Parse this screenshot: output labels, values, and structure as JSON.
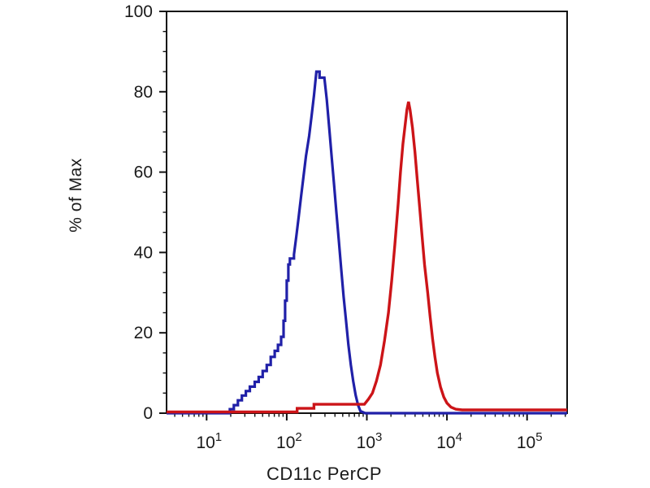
{
  "figure": {
    "background_color": "#ffffff",
    "axis_color": "#111111",
    "text_color": "#1a1a1a"
  },
  "chart_data": {
    "type": "line",
    "subtype": "flow-cytometry-histogram-overlay",
    "title": "",
    "xlabel": "CD11c PerCP",
    "ylabel": "% of Max",
    "x_scale": "log10",
    "grid": "off",
    "legend": "none",
    "x_axis": {
      "lim_log10": [
        0.5,
        5.5
      ],
      "major_ticks": [
        10,
        100,
        1000,
        10000,
        100000
      ],
      "major_tick_labels": [
        {
          "base": "10",
          "exp": "1"
        },
        {
          "base": "10",
          "exp": "2"
        },
        {
          "base": "10",
          "exp": "3"
        },
        {
          "base": "10",
          "exp": "4"
        },
        {
          "base": "10",
          "exp": "5"
        }
      ],
      "minor_tick_mantissas": [
        2,
        3,
        4,
        5,
        6,
        7,
        8,
        9
      ]
    },
    "y_axis": {
      "lim": [
        0,
        100
      ],
      "major_ticks": [
        0,
        20,
        40,
        60,
        80,
        100
      ],
      "minor_tick_step": 5
    },
    "series": [
      {
        "name": "blue-histogram",
        "color": "#2020a8",
        "stroke_width": 3.2,
        "peak": {
          "x_log10": 2.39,
          "pct": 85
        },
        "points_log10x_pct": [
          [
            0.5,
            0
          ],
          [
            1.29,
            0
          ],
          [
            1.29,
            1
          ],
          [
            1.34,
            1
          ],
          [
            1.34,
            2
          ],
          [
            1.39,
            2
          ],
          [
            1.39,
            3.2
          ],
          [
            1.44,
            3.2
          ],
          [
            1.44,
            4.4
          ],
          [
            1.49,
            4.4
          ],
          [
            1.49,
            5.5
          ],
          [
            1.54,
            5.5
          ],
          [
            1.54,
            6.6
          ],
          [
            1.6,
            6.6
          ],
          [
            1.6,
            7.8
          ],
          [
            1.65,
            7.8
          ],
          [
            1.65,
            9
          ],
          [
            1.7,
            9
          ],
          [
            1.7,
            10.5
          ],
          [
            1.75,
            10.5
          ],
          [
            1.75,
            12
          ],
          [
            1.8,
            12
          ],
          [
            1.8,
            14
          ],
          [
            1.85,
            14
          ],
          [
            1.85,
            15.5
          ],
          [
            1.89,
            15.5
          ],
          [
            1.89,
            17
          ],
          [
            1.93,
            17
          ],
          [
            1.93,
            19
          ],
          [
            1.96,
            19
          ],
          [
            1.96,
            23
          ],
          [
            1.98,
            23
          ],
          [
            1.98,
            28
          ],
          [
            2.0,
            28
          ],
          [
            2.0,
            33
          ],
          [
            2.02,
            33
          ],
          [
            2.02,
            37
          ],
          [
            2.04,
            37
          ],
          [
            2.04,
            38.5
          ],
          [
            2.09,
            38.5
          ],
          [
            2.09,
            39.5
          ],
          [
            2.12,
            44
          ],
          [
            2.15,
            49
          ],
          [
            2.18,
            54
          ],
          [
            2.21,
            59
          ],
          [
            2.24,
            64
          ],
          [
            2.28,
            69
          ],
          [
            2.31,
            74
          ],
          [
            2.34,
            79
          ],
          [
            2.36,
            83
          ],
          [
            2.37,
            85
          ],
          [
            2.41,
            85
          ],
          [
            2.41,
            83.5
          ],
          [
            2.47,
            83.5
          ],
          [
            2.5,
            78
          ],
          [
            2.53,
            71
          ],
          [
            2.56,
            64
          ],
          [
            2.59,
            57
          ],
          [
            2.62,
            50
          ],
          [
            2.65,
            43
          ],
          [
            2.68,
            36
          ],
          [
            2.71,
            29
          ],
          [
            2.74,
            23
          ],
          [
            2.77,
            17
          ],
          [
            2.8,
            12
          ],
          [
            2.83,
            8
          ],
          [
            2.86,
            4.5
          ],
          [
            2.89,
            2
          ],
          [
            2.92,
            0.5
          ],
          [
            2.98,
            0
          ],
          [
            5.5,
            0
          ]
        ]
      },
      {
        "name": "red-histogram",
        "color": "#cc1418",
        "stroke_width": 3.4,
        "peak": {
          "x_log10": 3.52,
          "pct": 77.5
        },
        "points_log10x_pct": [
          [
            0.5,
            0.3
          ],
          [
            2.13,
            0.3
          ],
          [
            2.13,
            1.2
          ],
          [
            2.34,
            1.2
          ],
          [
            2.34,
            2.2
          ],
          [
            2.97,
            2.2
          ],
          [
            3.02,
            3.5
          ],
          [
            3.07,
            5
          ],
          [
            3.12,
            8
          ],
          [
            3.17,
            12
          ],
          [
            3.22,
            18
          ],
          [
            3.27,
            25
          ],
          [
            3.31,
            33
          ],
          [
            3.35,
            42
          ],
          [
            3.39,
            52
          ],
          [
            3.42,
            60
          ],
          [
            3.45,
            67
          ],
          [
            3.48,
            72
          ],
          [
            3.5,
            75.5
          ],
          [
            3.52,
            77.5
          ],
          [
            3.54,
            75.5
          ],
          [
            3.57,
            71
          ],
          [
            3.6,
            65
          ],
          [
            3.63,
            58
          ],
          [
            3.66,
            51
          ],
          [
            3.69,
            44
          ],
          [
            3.72,
            37
          ],
          [
            3.76,
            30
          ],
          [
            3.79,
            24
          ],
          [
            3.82,
            18.5
          ],
          [
            3.85,
            14
          ],
          [
            3.88,
            10
          ],
          [
            3.92,
            6.5
          ],
          [
            3.96,
            4
          ],
          [
            4.0,
            2.5
          ],
          [
            4.05,
            1.5
          ],
          [
            4.11,
            1
          ],
          [
            4.19,
            0.8
          ],
          [
            5.5,
            0.8
          ]
        ]
      }
    ]
  }
}
